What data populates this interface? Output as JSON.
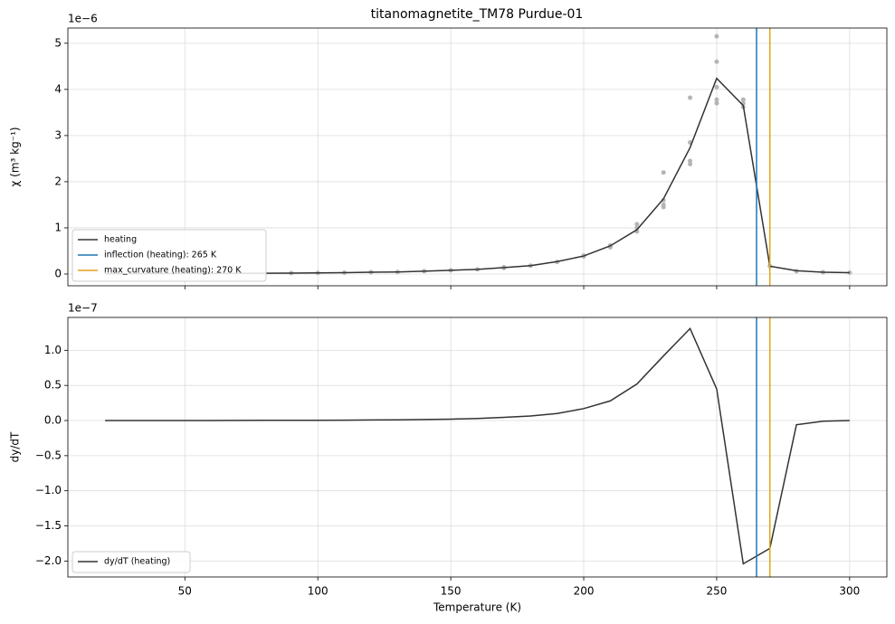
{
  "chart_data": [
    {
      "type": "line",
      "title": "titanomagnetite_TM78 Purdue-01",
      "ylabel": "χ (m³ kg⁻¹)",
      "offset_text": "1e−6",
      "x": [
        20,
        30,
        40,
        50,
        60,
        70,
        80,
        90,
        100,
        110,
        120,
        130,
        140,
        150,
        160,
        170,
        180,
        190,
        200,
        210,
        220,
        230,
        240,
        250,
        260,
        270,
        280,
        290,
        300
      ],
      "series": [
        {
          "name": "heating",
          "color": "#333333",
          "values": [
            0.005,
            0.007,
            0.009,
            0.011,
            0.013,
            0.015,
            0.017,
            0.02,
            0.025,
            0.03,
            0.04,
            0.045,
            0.06,
            0.08,
            0.1,
            0.14,
            0.18,
            0.27,
            0.39,
            0.61,
            0.96,
            1.63,
            2.74,
            4.24,
            3.65,
            0.17,
            0.07,
            0.04,
            0.03
          ]
        }
      ],
      "points": {
        "color": "#b5b5b5",
        "x": [
          90,
          100,
          110,
          120,
          130,
          140,
          150,
          160,
          170,
          170,
          180,
          190,
          200,
          200,
          210,
          210,
          220,
          220,
          220,
          230,
          230,
          230,
          230,
          240,
          240,
          240,
          240,
          250,
          250,
          250,
          250,
          250,
          260,
          260,
          260,
          270,
          280,
          290,
          300
        ],
        "values": [
          0.02,
          0.025,
          0.03,
          0.04,
          0.045,
          0.06,
          0.08,
          0.1,
          0.13,
          0.15,
          0.18,
          0.26,
          0.38,
          0.4,
          0.58,
          0.62,
          0.92,
          1.0,
          1.08,
          1.45,
          1.5,
          1.6,
          2.2,
          2.38,
          2.45,
          2.85,
          3.82,
          3.7,
          3.78,
          4.05,
          4.6,
          5.15,
          3.62,
          3.7,
          3.78,
          0.17,
          0.06,
          0.04,
          0.03
        ]
      },
      "vlines": [
        {
          "name": "inflection (heating): 265 K",
          "x": 265,
          "color": "#1f77b4"
        },
        {
          "name": "max_curvature (heating): 270 K",
          "x": 270,
          "color": "#e3a21a"
        }
      ],
      "xlim": [
        6,
        314
      ],
      "xticks": [
        50,
        100,
        150,
        200,
        250,
        300
      ],
      "xticklabels": false,
      "ylim": [
        -0.255,
        5.33
      ],
      "yticks": [
        0,
        1,
        2,
        3,
        4,
        5
      ],
      "grid": true,
      "legend": "lower left"
    },
    {
      "type": "line",
      "ylabel": "dy/dT",
      "xlabel": "Temperature (K)",
      "offset_text": "1e−7",
      "x": [
        20,
        30,
        40,
        50,
        60,
        70,
        80,
        90,
        100,
        110,
        120,
        130,
        140,
        150,
        160,
        170,
        180,
        190,
        200,
        210,
        220,
        230,
        240,
        250,
        260,
        270,
        280,
        290,
        300
      ],
      "series": [
        {
          "name": "dy/dT (heating)",
          "color": "#333333",
          "values": [
            0,
            0,
            0,
            0,
            0.001,
            0.002,
            0.003,
            0.004,
            0.004,
            0.005,
            0.008,
            0.01,
            0.015,
            0.02,
            0.03,
            0.045,
            0.065,
            0.1,
            0.17,
            0.28,
            0.52,
            0.92,
            1.31,
            0.45,
            -2.04,
            -1.82,
            -0.06,
            -0.01,
            0
          ]
        }
      ],
      "vlines": [
        {
          "x": 265,
          "color": "#1f77b4"
        },
        {
          "x": 270,
          "color": "#e3a21a"
        }
      ],
      "xlim": [
        6,
        314
      ],
      "xticks": [
        50,
        100,
        150,
        200,
        250,
        300
      ],
      "xticklabels": true,
      "ylim": [
        -2.227,
        1.468
      ],
      "yticks": [
        {
          "value": -2.0,
          "label": "−2.0"
        },
        {
          "value": -1.5,
          "label": "−1.5"
        },
        {
          "value": -1.0,
          "label": "−1.0"
        },
        {
          "value": -0.5,
          "label": "−0.5"
        },
        {
          "value": 0.0,
          "label": "0.0"
        },
        {
          "value": 0.5,
          "label": "0.5"
        },
        {
          "value": 1.0,
          "label": "1.0"
        }
      ],
      "grid": true,
      "legend": "lower left"
    }
  ]
}
